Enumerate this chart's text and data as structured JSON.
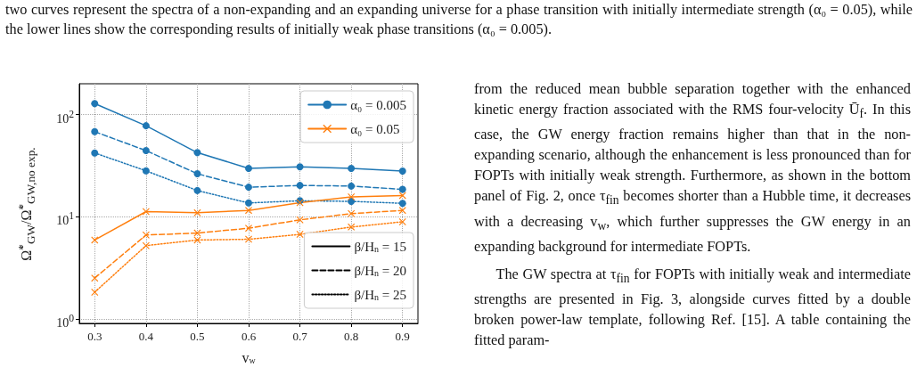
{
  "chart_data": {
    "type": "line",
    "x": [
      0.3,
      0.4,
      0.5,
      0.6,
      0.7,
      0.8,
      0.9
    ],
    "xlim": [
      0.27,
      0.93
    ],
    "xticks": [
      0.3,
      0.4,
      0.5,
      0.6,
      0.7,
      0.8,
      0.9
    ],
    "ylim": [
      0.9,
      200
    ],
    "yticks": [
      {
        "value": 1,
        "label": "10$^{0}$"
      },
      {
        "value": 10,
        "label": "10$^{1}$"
      },
      {
        "value": 100,
        "label": "10$^{2}$"
      }
    ],
    "log": "y",
    "grid": true,
    "legend": "right",
    "xlabel": "v$_{w}$",
    "ylabel": "Ω̃$^{*}$$_{GW}$/Ω̃$^{*}$$_{GW,no exp.}$",
    "series": [
      {
        "color": "#1f77b4",
        "marker": "circle",
        "line_style": "solid",
        "values": [
          128,
          77.6,
          42.3,
          29.7,
          30.7,
          29.7,
          27.9
        ]
      },
      {
        "color": "#1f77b4",
        "marker": "circle",
        "line_style": "dashed",
        "values": [
          67.9,
          44.3,
          26.3,
          19.4,
          20.2,
          19.9,
          18.5
        ]
      },
      {
        "color": "#1f77b4",
        "marker": "circle",
        "line_style": "dotted",
        "values": [
          42.0,
          28.1,
          18.0,
          13.6,
          14.3,
          14.1,
          13.5
        ]
      },
      {
        "color": "#ff7f0e",
        "marker": "cross",
        "line_style": "solid",
        "values": [
          5.9,
          11.2,
          10.9,
          11.5,
          13.7,
          15.6,
          16.1
        ]
      },
      {
        "color": "#ff7f0e",
        "marker": "cross",
        "line_style": "dashed",
        "values": [
          2.5,
          6.6,
          6.9,
          7.7,
          9.3,
          10.7,
          11.5
        ]
      },
      {
        "color": "#ff7f0e",
        "marker": "cross",
        "line_style": "dotted",
        "values": [
          1.82,
          5.2,
          5.9,
          6.0,
          6.7,
          7.9,
          8.9
        ]
      },
      {
        "name": "α₀ = 0.005",
        "color": "#1f77b4",
        "marker": "circle",
        "line_style": "solid",
        "values": [
          null,
          null,
          null,
          null,
          null,
          null,
          null
        ]
      },
      {
        "name": "α₀ = 0.05",
        "color": "#ff7f0e",
        "marker": "cross",
        "line_style": "solid",
        "values": [
          null,
          null,
          null,
          null,
          null,
          null,
          null
        ]
      },
      {
        "name": "β/H$_{n}$ = 15",
        "color": "#000000",
        "marker": "none",
        "line_style": "solid",
        "values": [
          null,
          null,
          null,
          null,
          null,
          null,
          null
        ]
      },
      {
        "name": "β/H$_{n}$ = 20",
        "color": "#000000",
        "marker": "none",
        "line_style": "dashed",
        "values": [
          null,
          null,
          null,
          null,
          null,
          null,
          null
        ]
      },
      {
        "name": "β/H$_{n}$ = 25",
        "color": "#000000",
        "marker": "none",
        "line_style": "dotted",
        "values": [
          null,
          null,
          null,
          null,
          null,
          null,
          null
        ]
      }
    ],
    "annotations": [
      "two curves represent the spectra of a non-expanding and an expanding universe for a phase transition with initially intermediate strength (α₀ = 0.05), while the lower lines show the corresponding results of initially weak phase transitions (α₀ = 0.005).",
      "from the reduced mean bubble separation together with the enhanced kinetic energy fraction associated with the RMS four-velocity Ū$_{f}$. In this case, the GW energy fraction remains higher than that in the non-expanding scenario, although the enhancement is less pronounced than for FOPTs with initially weak strength. Furthermore, as shown in the bottom panel of Fig. 2, once τ$_{fin}$ becomes shorter than a Hubble time, it decreases with a decreasing v$_{w}$, which further suppresses the GW energy in an expanding background for intermediate FOPTs.",
      "The GW spectra at τ$_{fin}$ for FOPTs with initially weak and intermediate strengths are presented in Fig. 3, alongside curves fitted by a double broken power-law template, following Ref. [15]. A table containing the fitted param-"
    ]
  }
}
